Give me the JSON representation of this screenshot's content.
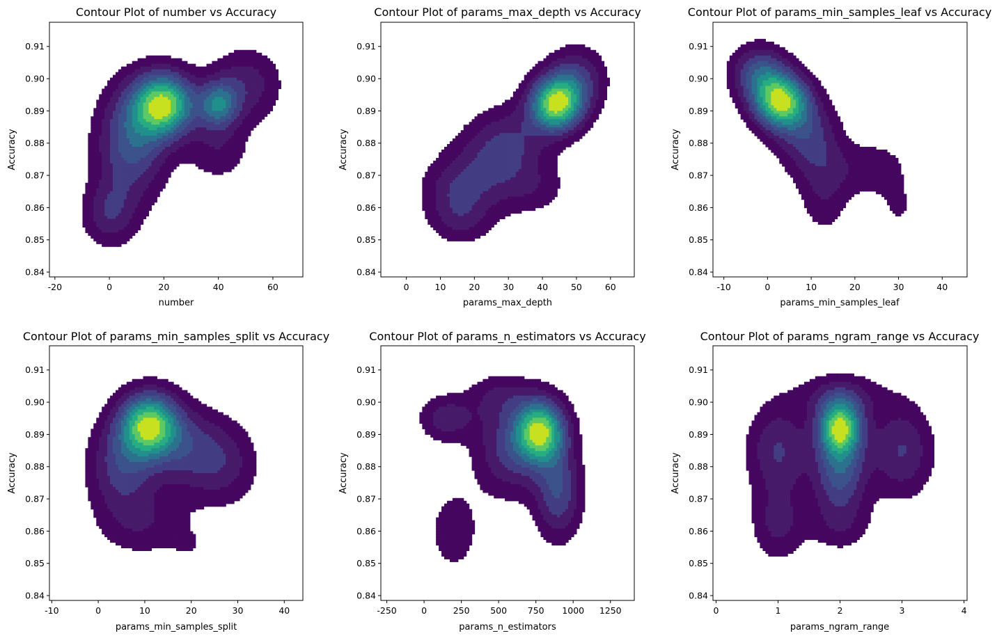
{
  "chart_data": [
    {
      "type": "contour",
      "title": "Contour Plot of number vs Accuracy",
      "xlabel": "number",
      "ylabel": "Accuracy",
      "xlim": [
        -22,
        71
      ],
      "ylim": [
        0.8385,
        0.9175
      ],
      "xticks": [
        -20,
        0,
        20,
        40,
        60
      ],
      "yticks": [
        0.84,
        0.85,
        0.86,
        0.87,
        0.88,
        0.89,
        0.9,
        0.91
      ],
      "yticklabels": [
        "0.84",
        "0.85",
        "0.86",
        "0.87",
        "0.88",
        "0.89",
        "0.90",
        "0.91"
      ],
      "density_peaks": [
        {
          "x": 20,
          "y": 0.892,
          "sx": 8,
          "sy": 0.007,
          "w": 1.0
        },
        {
          "x": 40,
          "y": 0.892,
          "sx": 5,
          "sy": 0.005,
          "w": 0.55
        },
        {
          "x": 8,
          "y": 0.88,
          "sx": 9,
          "sy": 0.012,
          "w": 0.5
        },
        {
          "x": 0,
          "y": 0.858,
          "sx": 7,
          "sy": 0.007,
          "w": 0.3
        },
        {
          "x": 50,
          "y": 0.898,
          "sx": 9,
          "sy": 0.008,
          "w": 0.3
        },
        {
          "x": 40,
          "y": 0.878,
          "sx": 8,
          "sy": 0.007,
          "w": 0.2
        }
      ]
    },
    {
      "type": "contour",
      "title": "Contour Plot of params_max_depth vs Accuracy",
      "xlabel": "params_max_depth",
      "ylabel": "Accuracy",
      "xlim": [
        -7.5,
        67
      ],
      "ylim": [
        0.8385,
        0.9175
      ],
      "xticks": [
        0,
        10,
        20,
        30,
        40,
        50,
        60
      ],
      "yticks": [
        0.84,
        0.85,
        0.86,
        0.87,
        0.88,
        0.89,
        0.9,
        0.91
      ],
      "yticklabels": [
        "0.84",
        "0.85",
        "0.86",
        "0.87",
        "0.88",
        "0.89",
        "0.90",
        "0.91"
      ],
      "density_peaks": [
        {
          "x": 44,
          "y": 0.892,
          "sx": 5.5,
          "sy": 0.006,
          "w": 1.0
        },
        {
          "x": 50,
          "y": 0.9,
          "sx": 6,
          "sy": 0.007,
          "w": 0.35
        },
        {
          "x": 30,
          "y": 0.88,
          "sx": 8,
          "sy": 0.008,
          "w": 0.3
        },
        {
          "x": 14,
          "y": 0.864,
          "sx": 7,
          "sy": 0.007,
          "w": 0.22
        },
        {
          "x": 22,
          "y": 0.87,
          "sx": 9,
          "sy": 0.009,
          "w": 0.22
        },
        {
          "x": 16,
          "y": 0.855,
          "sx": 6,
          "sy": 0.005,
          "w": 0.15
        },
        {
          "x": 38,
          "y": 0.866,
          "sx": 7,
          "sy": 0.006,
          "w": 0.15
        }
      ]
    },
    {
      "type": "contour",
      "title": "Contour Plot of params_min_samples_leaf vs Accuracy",
      "xlabel": "params_min_samples_leaf",
      "ylabel": "Accuracy",
      "xlim": [
        -12.5,
        45.7
      ],
      "ylim": [
        0.8385,
        0.9175
      ],
      "xticks": [
        -10,
        0,
        10,
        20,
        30,
        40
      ],
      "yticks": [
        0.84,
        0.85,
        0.86,
        0.87,
        0.88,
        0.89,
        0.9,
        0.91
      ],
      "yticklabels": [
        "0.84",
        "0.85",
        "0.86",
        "0.87",
        "0.88",
        "0.89",
        "0.90",
        "0.91"
      ],
      "density_peaks": [
        {
          "x": 3,
          "y": 0.893,
          "sx": 4.5,
          "sy": 0.006,
          "w": 1.0
        },
        {
          "x": -2,
          "y": 0.902,
          "sx": 4.5,
          "sy": 0.006,
          "w": 0.45
        },
        {
          "x": 9,
          "y": 0.882,
          "sx": 5,
          "sy": 0.008,
          "w": 0.35
        },
        {
          "x": 13,
          "y": 0.866,
          "sx": 4,
          "sy": 0.01,
          "w": 0.22
        },
        {
          "x": 24,
          "y": 0.872,
          "sx": 6,
          "sy": 0.006,
          "w": 0.2
        },
        {
          "x": 30,
          "y": 0.86,
          "sx": 3,
          "sy": 0.005,
          "w": 0.12
        }
      ]
    },
    {
      "type": "contour",
      "title": "Contour Plot of params_min_samples_split vs Accuracy",
      "xlabel": "params_min_samples_split",
      "ylabel": "Accuracy",
      "xlim": [
        -10.5,
        44
      ],
      "ylim": [
        0.8385,
        0.9175
      ],
      "xticks": [
        -10,
        0,
        10,
        20,
        30,
        40
      ],
      "yticks": [
        0.84,
        0.85,
        0.86,
        0.87,
        0.88,
        0.89,
        0.9,
        0.91
      ],
      "yticklabels": [
        "0.84",
        "0.85",
        "0.86",
        "0.87",
        "0.88",
        "0.89",
        "0.90",
        "0.91"
      ],
      "density_peaks": [
        {
          "x": 11,
          "y": 0.893,
          "sx": 4.5,
          "sy": 0.007,
          "w": 1.0
        },
        {
          "x": 5,
          "y": 0.88,
          "sx": 5,
          "sy": 0.01,
          "w": 0.4
        },
        {
          "x": 20,
          "y": 0.885,
          "sx": 6,
          "sy": 0.009,
          "w": 0.35
        },
        {
          "x": 28,
          "y": 0.88,
          "sx": 5,
          "sy": 0.009,
          "w": 0.2
        },
        {
          "x": 10,
          "y": 0.862,
          "sx": 7,
          "sy": 0.007,
          "w": 0.2
        },
        {
          "x": 20,
          "y": 0.855,
          "sx": 3,
          "sy": 0.004,
          "w": 0.08
        }
      ]
    },
    {
      "type": "contour",
      "title": "Contour Plot of params_n_estimators vs Accuracy",
      "xlabel": "params_n_estimators",
      "ylabel": "Accuracy",
      "xlim": [
        -290,
        1410
      ],
      "ylim": [
        0.8385,
        0.9175
      ],
      "xticks": [
        -250,
        0,
        250,
        500,
        750,
        1000,
        1250
      ],
      "yticks": [
        0.84,
        0.85,
        0.86,
        0.87,
        0.88,
        0.89,
        0.9,
        0.91
      ],
      "yticklabels": [
        "0.84",
        "0.85",
        "0.86",
        "0.87",
        "0.88",
        "0.89",
        "0.90",
        "0.91"
      ],
      "density_peaks": [
        {
          "x": 780,
          "y": 0.891,
          "sx": 120,
          "sy": 0.007,
          "w": 1.0
        },
        {
          "x": 900,
          "y": 0.872,
          "sx": 110,
          "sy": 0.01,
          "w": 0.45
        },
        {
          "x": 150,
          "y": 0.895,
          "sx": 130,
          "sy": 0.005,
          "w": 0.3
        },
        {
          "x": 560,
          "y": 0.885,
          "sx": 160,
          "sy": 0.01,
          "w": 0.35
        },
        {
          "x": 200,
          "y": 0.86,
          "sx": 120,
          "sy": 0.009,
          "w": 0.2
        },
        {
          "x": 500,
          "y": 0.902,
          "sx": 150,
          "sy": 0.005,
          "w": 0.2
        }
      ]
    },
    {
      "type": "contour",
      "title": "Contour Plot of params_ngram_range vs Accuracy",
      "xlabel": "params_ngram_range",
      "ylabel": "Accuracy",
      "xlim": [
        -0.05,
        4.05
      ],
      "ylim": [
        0.8385,
        0.9175
      ],
      "xticks": [
        0,
        1,
        2,
        3,
        4
      ],
      "yticks": [
        0.84,
        0.85,
        0.86,
        0.87,
        0.88,
        0.89,
        0.9,
        0.91
      ],
      "yticklabels": [
        "0.84",
        "0.85",
        "0.86",
        "0.87",
        "0.88",
        "0.89",
        "0.90",
        "0.91"
      ],
      "density_peaks": [
        {
          "x": 2.0,
          "y": 0.892,
          "sx": 0.25,
          "sy": 0.006,
          "w": 1.0
        },
        {
          "x": 2.0,
          "y": 0.878,
          "sx": 0.3,
          "sy": 0.008,
          "w": 0.5
        },
        {
          "x": 1.0,
          "y": 0.885,
          "sx": 0.35,
          "sy": 0.01,
          "w": 0.35
        },
        {
          "x": 3.0,
          "y": 0.885,
          "sx": 0.35,
          "sy": 0.01,
          "w": 0.35
        },
        {
          "x": 1.0,
          "y": 0.862,
          "sx": 0.3,
          "sy": 0.008,
          "w": 0.25
        },
        {
          "x": 2.0,
          "y": 0.862,
          "sx": 0.35,
          "sy": 0.006,
          "w": 0.2
        },
        {
          "x": 2.0,
          "y": 0.902,
          "sx": 0.5,
          "sy": 0.005,
          "w": 0.25
        }
      ]
    }
  ],
  "colormap": [
    "#45075f",
    "#471a6a",
    "#433d84",
    "#3b528b",
    "#2c718e",
    "#21908d",
    "#27ad81",
    "#5dc963",
    "#c7e020"
  ]
}
